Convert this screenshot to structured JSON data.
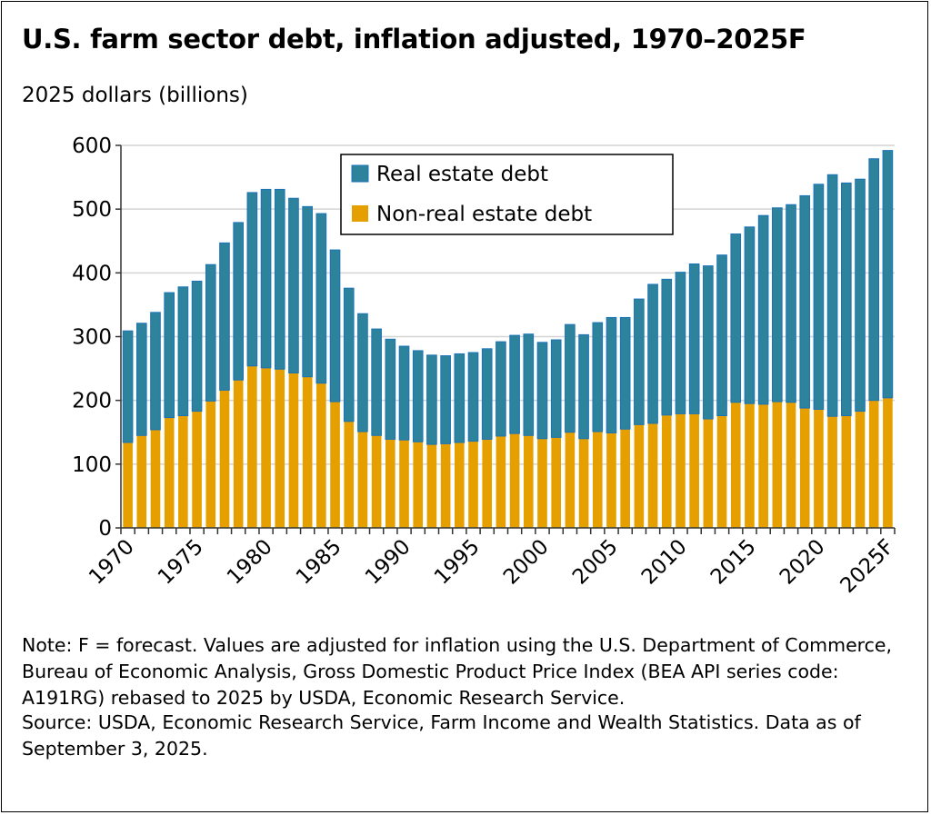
{
  "chart_data": {
    "type": "bar",
    "stacked": true,
    "title": "U.S. farm sector debt, inflation adjusted, 1970–2025F",
    "ylabel": "2025 dollars (billions)",
    "xlabel": "",
    "ylim": [
      0,
      600
    ],
    "yticks": [
      0,
      100,
      200,
      300,
      400,
      500,
      600
    ],
    "grid": true,
    "legend_position": "top-center",
    "categories": [
      "1970",
      "1971",
      "1972",
      "1973",
      "1974",
      "1975",
      "1976",
      "1977",
      "1978",
      "1979",
      "1980",
      "1981",
      "1982",
      "1983",
      "1984",
      "1985",
      "1986",
      "1987",
      "1988",
      "1989",
      "1990",
      "1991",
      "1992",
      "1993",
      "1994",
      "1995",
      "1996",
      "1997",
      "1998",
      "1999",
      "2000",
      "2001",
      "2002",
      "2003",
      "2004",
      "2005",
      "2006",
      "2007",
      "2008",
      "2009",
      "2010",
      "2011",
      "2012",
      "2013",
      "2014",
      "2015",
      "2016",
      "2017",
      "2018",
      "2019",
      "2020",
      "2021",
      "2022",
      "2023",
      "2024",
      "2025F"
    ],
    "xtick_labels": [
      "1970",
      "1975",
      "1980",
      "1985",
      "1990",
      "1995",
      "2000",
      "2005",
      "2010",
      "2015",
      "2020",
      "2025F"
    ],
    "series": [
      {
        "name": "Non-real estate debt",
        "color": "#E5A000",
        "values": [
          134,
          145,
          154,
          173,
          176,
          183,
          199,
          216,
          232,
          254,
          251,
          249,
          243,
          237,
          227,
          198,
          167,
          151,
          145,
          139,
          138,
          135,
          131,
          132,
          134,
          136,
          139,
          144,
          148,
          145,
          140,
          142,
          150,
          140,
          151,
          149,
          155,
          162,
          164,
          177,
          179,
          179,
          171,
          176,
          197,
          195,
          194,
          198,
          197,
          188,
          186,
          175,
          176,
          183,
          200,
          204
        ]
      },
      {
        "name": "Real estate debt",
        "color": "#2E839C",
        "values": [
          175,
          176,
          184,
          196,
          202,
          204,
          214,
          231,
          247,
          272,
          280,
          282,
          274,
          267,
          266,
          238,
          209,
          185,
          167,
          157,
          147,
          143,
          140,
          138,
          139,
          139,
          142,
          148,
          154,
          159,
          151,
          153,
          169,
          163,
          171,
          181,
          175,
          197,
          218,
          213,
          222,
          235,
          240,
          252,
          264,
          277,
          296,
          304,
          310,
          333,
          353,
          379,
          365,
          364,
          379,
          388
        ]
      }
    ]
  },
  "notes": {
    "note": "Note: F = forecast. Values are adjusted for inflation using the U.S. Department of Commerce, Bureau of Economic Analysis, Gross Domestic Product Price Index (BEA API series code: A191RG) rebased to 2025 by USDA, Economic Research Service.",
    "source": "Source: USDA, Economic Research Service, Farm Income and Wealth Statistics. Data as of September 3, 2025."
  }
}
